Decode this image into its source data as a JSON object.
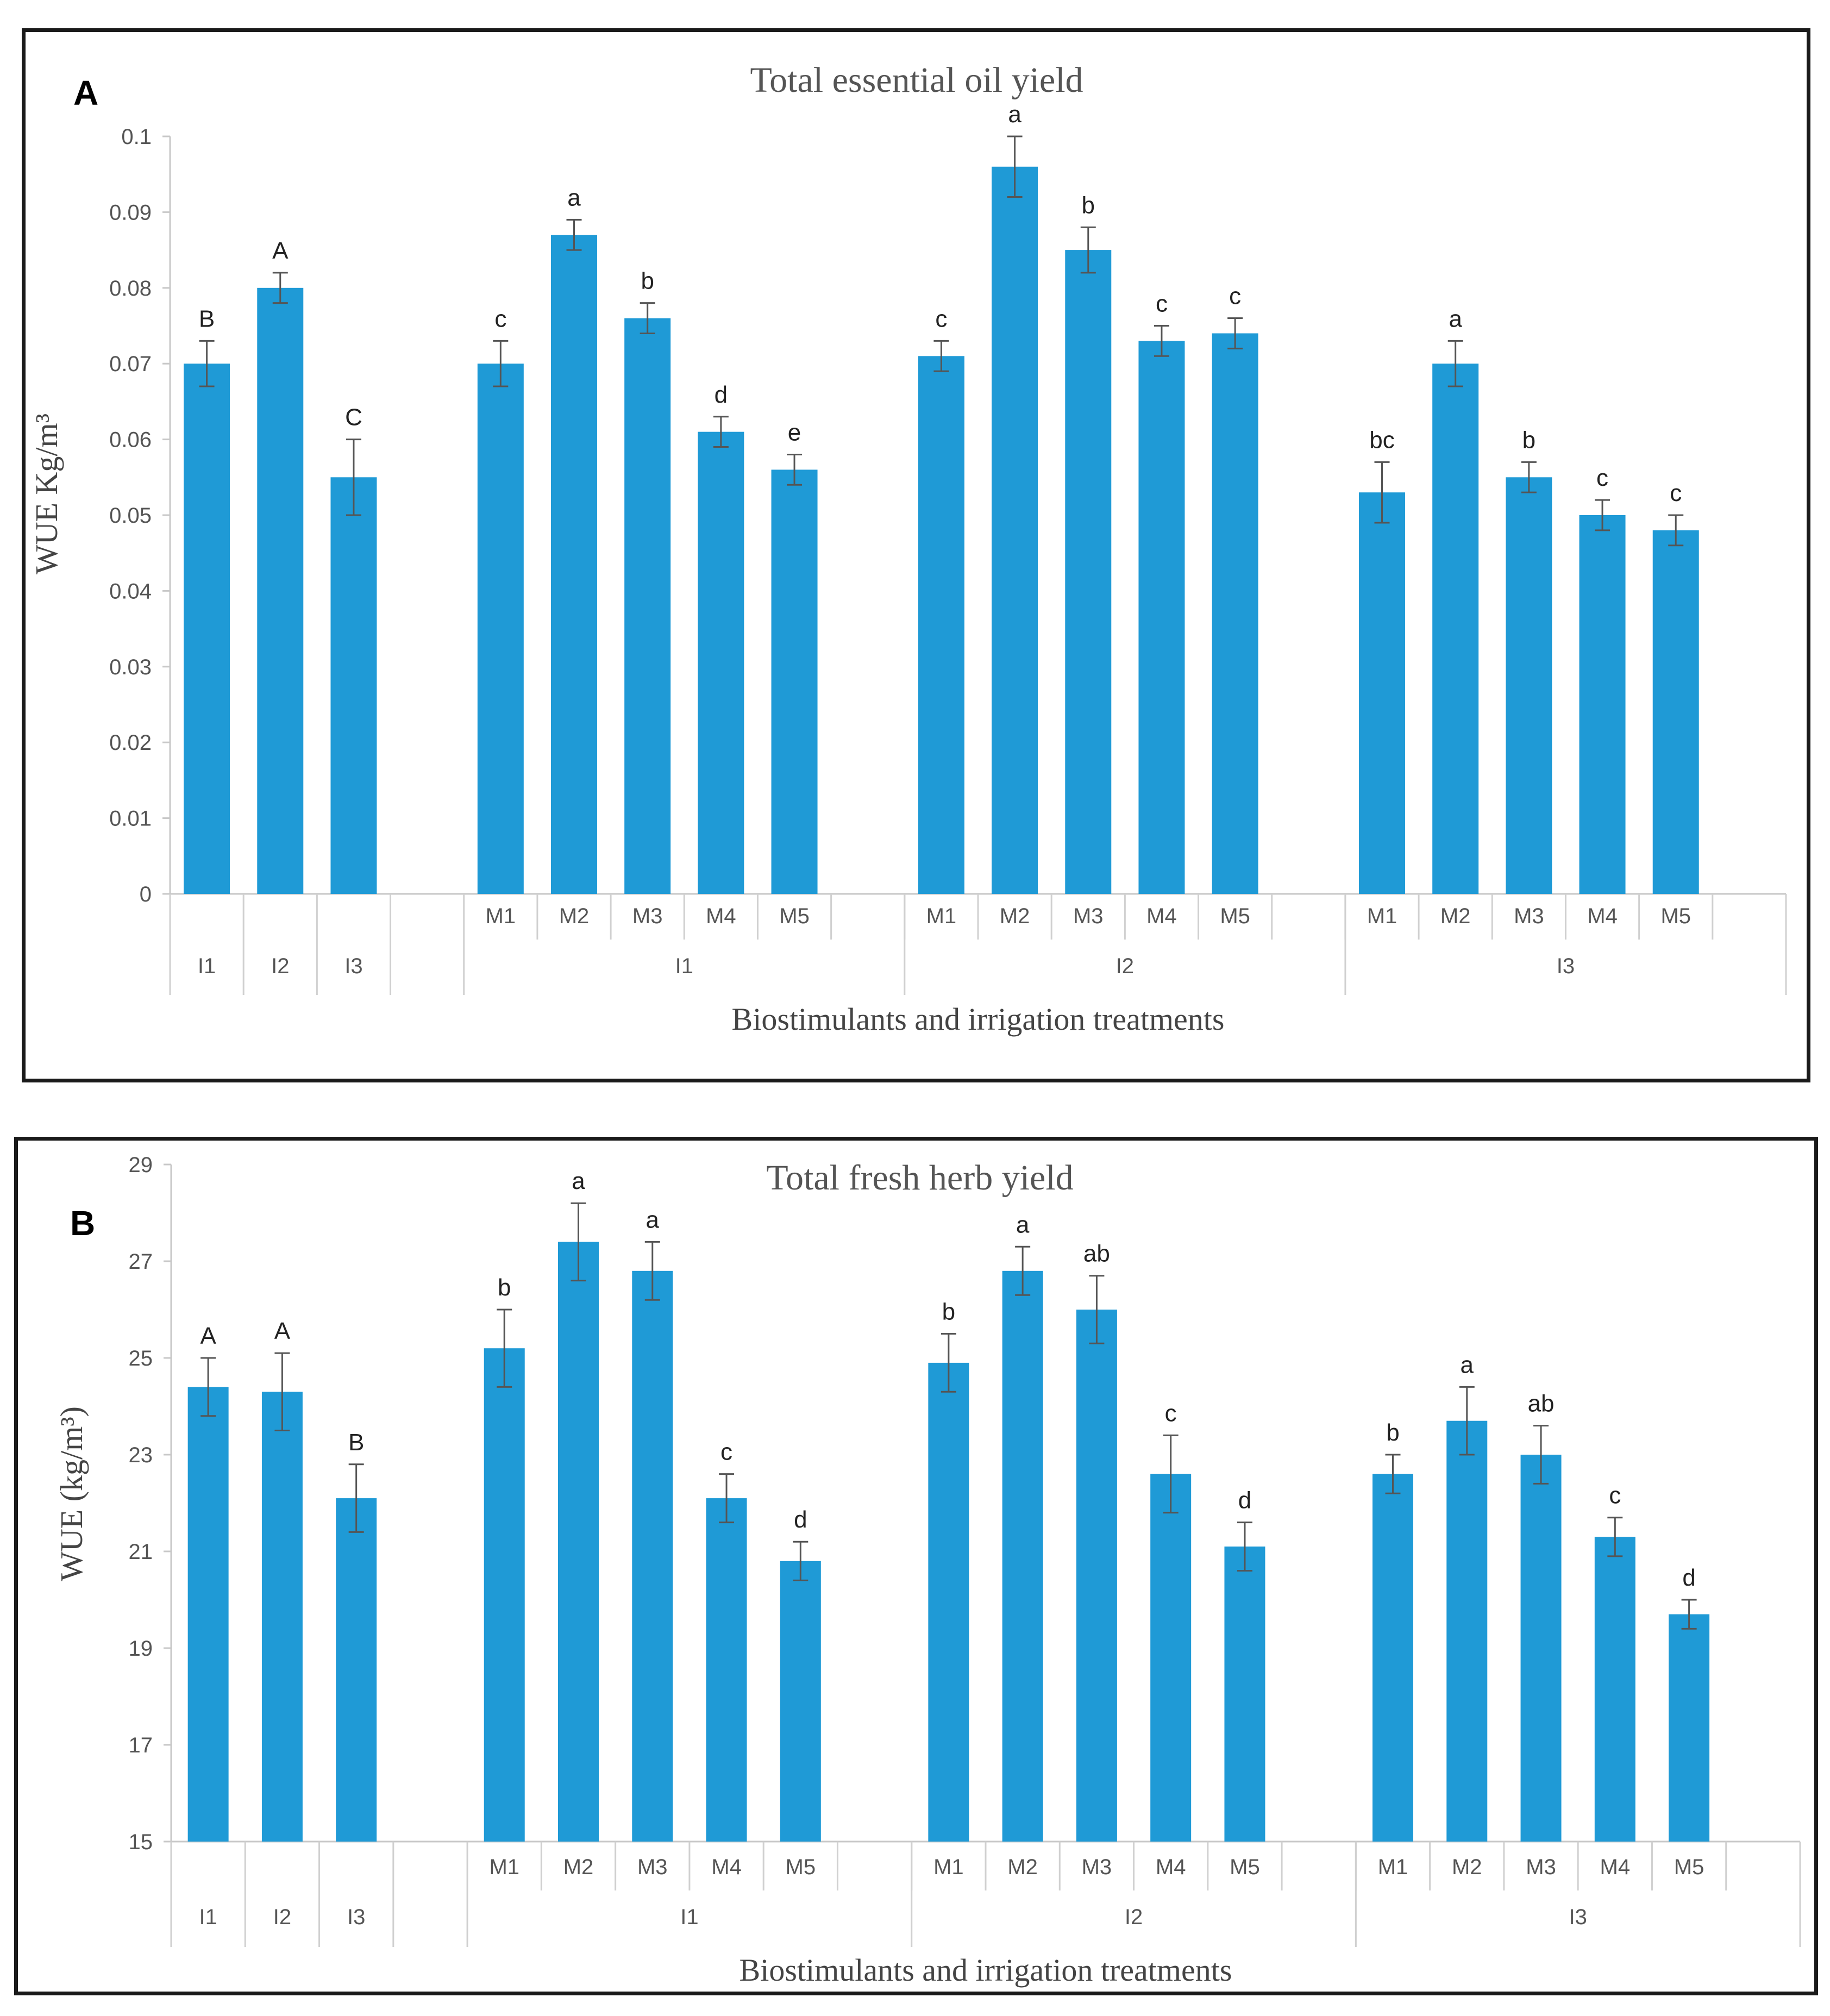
{
  "chart_data": [
    {
      "type": "bar",
      "panel_label": "A",
      "title": "Total essential oil yield",
      "xlabel": "Biostimulants and irrigation treatments",
      "ylabel": "WUE  Kg/m³",
      "ylim": [
        0,
        0.1
      ],
      "yticks": [
        "0",
        "0.01",
        "0.02",
        "0.03",
        "0.04",
        "0.05",
        "0.06",
        "0.07",
        "0.08",
        "0.09",
        "0.1"
      ],
      "grid": false,
      "bar_color": "#1F9AD6",
      "groups": [
        {
          "group_label": "",
          "bars": [
            {
              "label": "I1",
              "value": 0.07,
              "error": 0.003,
              "letter": "B"
            },
            {
              "label": "I2",
              "value": 0.08,
              "error": 0.002,
              "letter": "A"
            },
            {
              "label": "I3",
              "value": 0.055,
              "error": 0.005,
              "letter": "C"
            }
          ]
        },
        {
          "group_label": "I1",
          "bars": [
            {
              "label": "M1",
              "value": 0.07,
              "error": 0.003,
              "letter": "c"
            },
            {
              "label": "M2",
              "value": 0.087,
              "error": 0.002,
              "letter": "a"
            },
            {
              "label": "M3",
              "value": 0.076,
              "error": 0.002,
              "letter": "b"
            },
            {
              "label": "M4",
              "value": 0.061,
              "error": 0.002,
              "letter": "d"
            },
            {
              "label": "M5",
              "value": 0.056,
              "error": 0.002,
              "letter": "e"
            }
          ]
        },
        {
          "group_label": "I2",
          "bars": [
            {
              "label": "M1",
              "value": 0.071,
              "error": 0.002,
              "letter": "c"
            },
            {
              "label": "M2",
              "value": 0.096,
              "error": 0.004,
              "letter": "a"
            },
            {
              "label": "M3",
              "value": 0.085,
              "error": 0.003,
              "letter": "b"
            },
            {
              "label": "M4",
              "value": 0.073,
              "error": 0.002,
              "letter": "c"
            },
            {
              "label": "M5",
              "value": 0.074,
              "error": 0.002,
              "letter": "c"
            }
          ]
        },
        {
          "group_label": "I3",
          "bars": [
            {
              "label": "M1",
              "value": 0.053,
              "error": 0.004,
              "letter": "bc"
            },
            {
              "label": "M2",
              "value": 0.07,
              "error": 0.003,
              "letter": "a"
            },
            {
              "label": "M3",
              "value": 0.055,
              "error": 0.002,
              "letter": "b"
            },
            {
              "label": "M4",
              "value": 0.05,
              "error": 0.002,
              "letter": "c"
            },
            {
              "label": "M5",
              "value": 0.048,
              "error": 0.002,
              "letter": "c"
            }
          ]
        }
      ]
    },
    {
      "type": "bar",
      "panel_label": "B",
      "title": "Total fresh herb yield",
      "xlabel": "Biostimulants and irrigation treatments",
      "ylabel": "WUE  (kg/m³)",
      "ylim": [
        15,
        29
      ],
      "yticks": [
        "15",
        "17",
        "19",
        "21",
        "23",
        "25",
        "27",
        "29"
      ],
      "grid": false,
      "bar_color": "#1F9AD6",
      "groups": [
        {
          "group_label": "",
          "bars": [
            {
              "label": "I1",
              "value": 24.4,
              "error": 0.6,
              "letter": "A"
            },
            {
              "label": "I2",
              "value": 24.3,
              "error": 0.8,
              "letter": "A"
            },
            {
              "label": "I3",
              "value": 22.1,
              "error": 0.7,
              "letter": "B"
            }
          ]
        },
        {
          "group_label": "I1",
          "bars": [
            {
              "label": "M1",
              "value": 25.2,
              "error": 0.8,
              "letter": "b"
            },
            {
              "label": "M2",
              "value": 27.4,
              "error": 0.8,
              "letter": "a"
            },
            {
              "label": "M3",
              "value": 26.8,
              "error": 0.6,
              "letter": "a"
            },
            {
              "label": "M4",
              "value": 22.1,
              "error": 0.5,
              "letter": "c"
            },
            {
              "label": "M5",
              "value": 20.8,
              "error": 0.4,
              "letter": "d"
            }
          ]
        },
        {
          "group_label": "I2",
          "bars": [
            {
              "label": "M1",
              "value": 24.9,
              "error": 0.6,
              "letter": "b"
            },
            {
              "label": "M2",
              "value": 26.8,
              "error": 0.5,
              "letter": "a"
            },
            {
              "label": "M3",
              "value": 26.0,
              "error": 0.7,
              "letter": "ab"
            },
            {
              "label": "M4",
              "value": 22.6,
              "error": 0.8,
              "letter": "c"
            },
            {
              "label": "M5",
              "value": 21.1,
              "error": 0.5,
              "letter": "d"
            }
          ]
        },
        {
          "group_label": "I3",
          "bars": [
            {
              "label": "M1",
              "value": 22.6,
              "error": 0.4,
              "letter": "b"
            },
            {
              "label": "M2",
              "value": 23.7,
              "error": 0.7,
              "letter": "a"
            },
            {
              "label": "M3",
              "value": 23.0,
              "error": 0.6,
              "letter": "ab"
            },
            {
              "label": "M4",
              "value": 21.3,
              "error": 0.4,
              "letter": "c"
            },
            {
              "label": "M5",
              "value": 19.7,
              "error": 0.3,
              "letter": "d"
            }
          ]
        }
      ]
    }
  ]
}
